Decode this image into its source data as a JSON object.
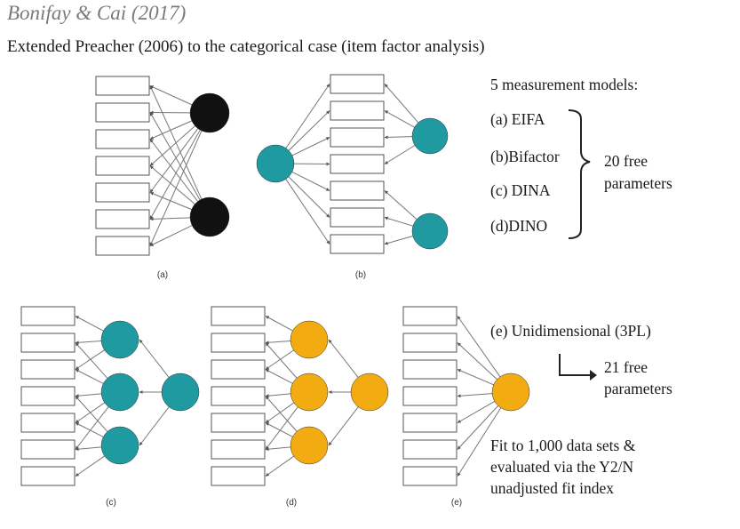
{
  "header": {
    "title": "Bonifay & Cai (2017)",
    "subtitle": "Extended Preacher (2006) to the categorical case (item factor analysis)"
  },
  "colors": {
    "black_factor": "#111111",
    "teal_factor": "#1e9aa0",
    "orange_factor": "#f2ab10",
    "box_stroke": "#555555",
    "edge": "#777777"
  },
  "diagrams": [
    {
      "caption": "(a)",
      "factor_color": "black"
    },
    {
      "caption": "(b)",
      "factor_color": "teal"
    },
    {
      "caption": "(c)",
      "factor_color": "teal"
    },
    {
      "caption": "(d)",
      "factor_color": "orange"
    },
    {
      "caption": "(e)",
      "factor_color": "orange"
    }
  ],
  "legend": {
    "heading": "5 measurement models:",
    "models": [
      "(a) EIFA",
      "(b)Bifactor",
      "(c) DINA",
      "(d)DINO"
    ],
    "group_note_line1": "20 free",
    "group_note_line2": "parameters",
    "unidim": "(e) Unidimensional (3PL)",
    "unidim_note_line1": "21 free",
    "unidim_note_line2": "parameters",
    "fit_line1": "Fit to 1,000 data sets &",
    "fit_line2": "evaluated via the Y2/N",
    "fit_line3": "unadjusted fit index"
  }
}
